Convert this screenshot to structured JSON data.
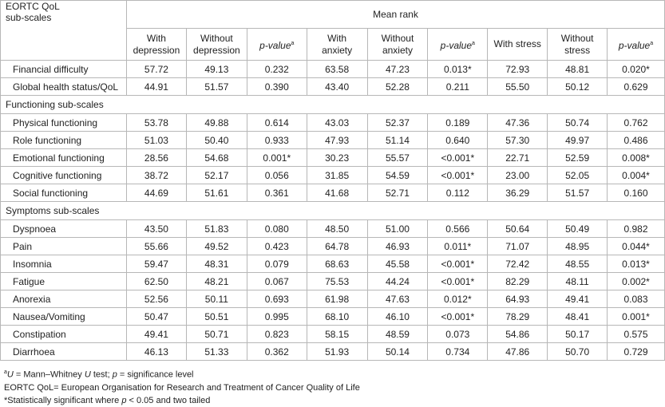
{
  "header": {
    "corner_label_line1": "EORTC QoL",
    "corner_label_line2": "sub-scales",
    "mean_rank": "Mean rank",
    "columns": [
      {
        "line1": "With",
        "line2": "depression"
      },
      {
        "line1": "Without",
        "line2": "depression"
      },
      {
        "pvalue": "p-value",
        "sup": "a"
      },
      {
        "line1": "With",
        "line2": "anxiety"
      },
      {
        "line1": "Without",
        "line2": "anxiety"
      },
      {
        "pvalue": "p-value",
        "sup": "a"
      },
      {
        "line1": "With stress",
        "line2": ""
      },
      {
        "line1": "Without",
        "line2": "stress"
      },
      {
        "pvalue": "p-value",
        "sup": "a"
      }
    ]
  },
  "rows": [
    {
      "label": "Financial difficulty",
      "values": [
        "57.72",
        "49.13",
        "0.232",
        "63.58",
        "47.23",
        "0.013*",
        "72.93",
        "48.81",
        "0.020*"
      ]
    },
    {
      "label": "Global health status/QoL",
      "values": [
        "44.91",
        "51.57",
        "0.390",
        "43.40",
        "52.28",
        "0.211",
        "55.50",
        "50.12",
        "0.629"
      ]
    },
    {
      "section": "Functioning sub-scales"
    },
    {
      "label": "Physical functioning",
      "values": [
        "53.78",
        "49.88",
        "0.614",
        "43.03",
        "52.37",
        "0.189",
        "47.36",
        "50.74",
        "0.762"
      ]
    },
    {
      "label": "Role functioning",
      "values": [
        "51.03",
        "50.40",
        "0.933",
        "47.93",
        "51.14",
        "0.640",
        "57.30",
        "49.97",
        "0.486"
      ]
    },
    {
      "label": "Emotional functioning",
      "values": [
        "28.56",
        "54.68",
        "0.001*",
        "30.23",
        "55.57",
        "<0.001*",
        "22.71",
        "52.59",
        "0.008*"
      ]
    },
    {
      "label": "Cognitive functioning",
      "values": [
        "38.72",
        "52.17",
        "0.056",
        "31.85",
        "54.59",
        "<0.001*",
        "23.00",
        "52.05",
        "0.004*"
      ]
    },
    {
      "label": "Social functioning",
      "values": [
        "44.69",
        "51.61",
        "0.361",
        "41.68",
        "52.71",
        "0.112",
        "36.29",
        "51.57",
        "0.160"
      ]
    },
    {
      "section": "Symptoms sub-scales"
    },
    {
      "label": "Dyspnoea",
      "values": [
        "43.50",
        "51.83",
        "0.080",
        "48.50",
        "51.00",
        "0.566",
        "50.64",
        "50.49",
        "0.982"
      ]
    },
    {
      "label": "Pain",
      "values": [
        "55.66",
        "49.52",
        "0.423",
        "64.78",
        "46.93",
        "0.011*",
        "71.07",
        "48.95",
        "0.044*"
      ]
    },
    {
      "label": "Insomnia",
      "values": [
        "59.47",
        "48.31",
        "0.079",
        "68.63",
        "45.58",
        "<0.001*",
        "72.42",
        "48.55",
        "0.013*"
      ]
    },
    {
      "label": "Fatigue",
      "values": [
        "62.50",
        "48.21",
        "0.067",
        "75.53",
        "44.24",
        "<0.001*",
        "82.29",
        "48.11",
        "0.002*"
      ]
    },
    {
      "label": "Anorexia",
      "values": [
        "52.56",
        "50.11",
        "0.693",
        "61.98",
        "47.63",
        "0.012*",
        "64.93",
        "49.41",
        "0.083"
      ]
    },
    {
      "label": "Nausea/Vomiting",
      "values": [
        "50.47",
        "50.51",
        "0.995",
        "68.10",
        "46.10",
        "<0.001*",
        "78.29",
        "48.41",
        "0.001*"
      ]
    },
    {
      "label": "Constipation",
      "values": [
        "49.41",
        "50.71",
        "0.823",
        "58.15",
        "48.59",
        "0.073",
        "54.86",
        "50.17",
        "0.575"
      ]
    },
    {
      "label": "Diarrhoea",
      "values": [
        "46.13",
        "51.33",
        "0.362",
        "51.93",
        "50.14",
        "0.734",
        "47.86",
        "50.70",
        "0.729"
      ]
    }
  ],
  "footnotes": {
    "line1_sup": "a",
    "line1_U": "U",
    "line1_mid": " = Mann–Whitney ",
    "line1_U2": "U",
    "line1_mid2": " test; ",
    "line1_p": "p",
    "line1_end": " = significance level",
    "line2": "EORTC QoL= European Organisation for Research and Treatment of Cancer Quality of Life",
    "line3_start": "*Statistically significant where ",
    "line3_p": "p",
    "line3_end": " < 0.05 and two tailed"
  }
}
